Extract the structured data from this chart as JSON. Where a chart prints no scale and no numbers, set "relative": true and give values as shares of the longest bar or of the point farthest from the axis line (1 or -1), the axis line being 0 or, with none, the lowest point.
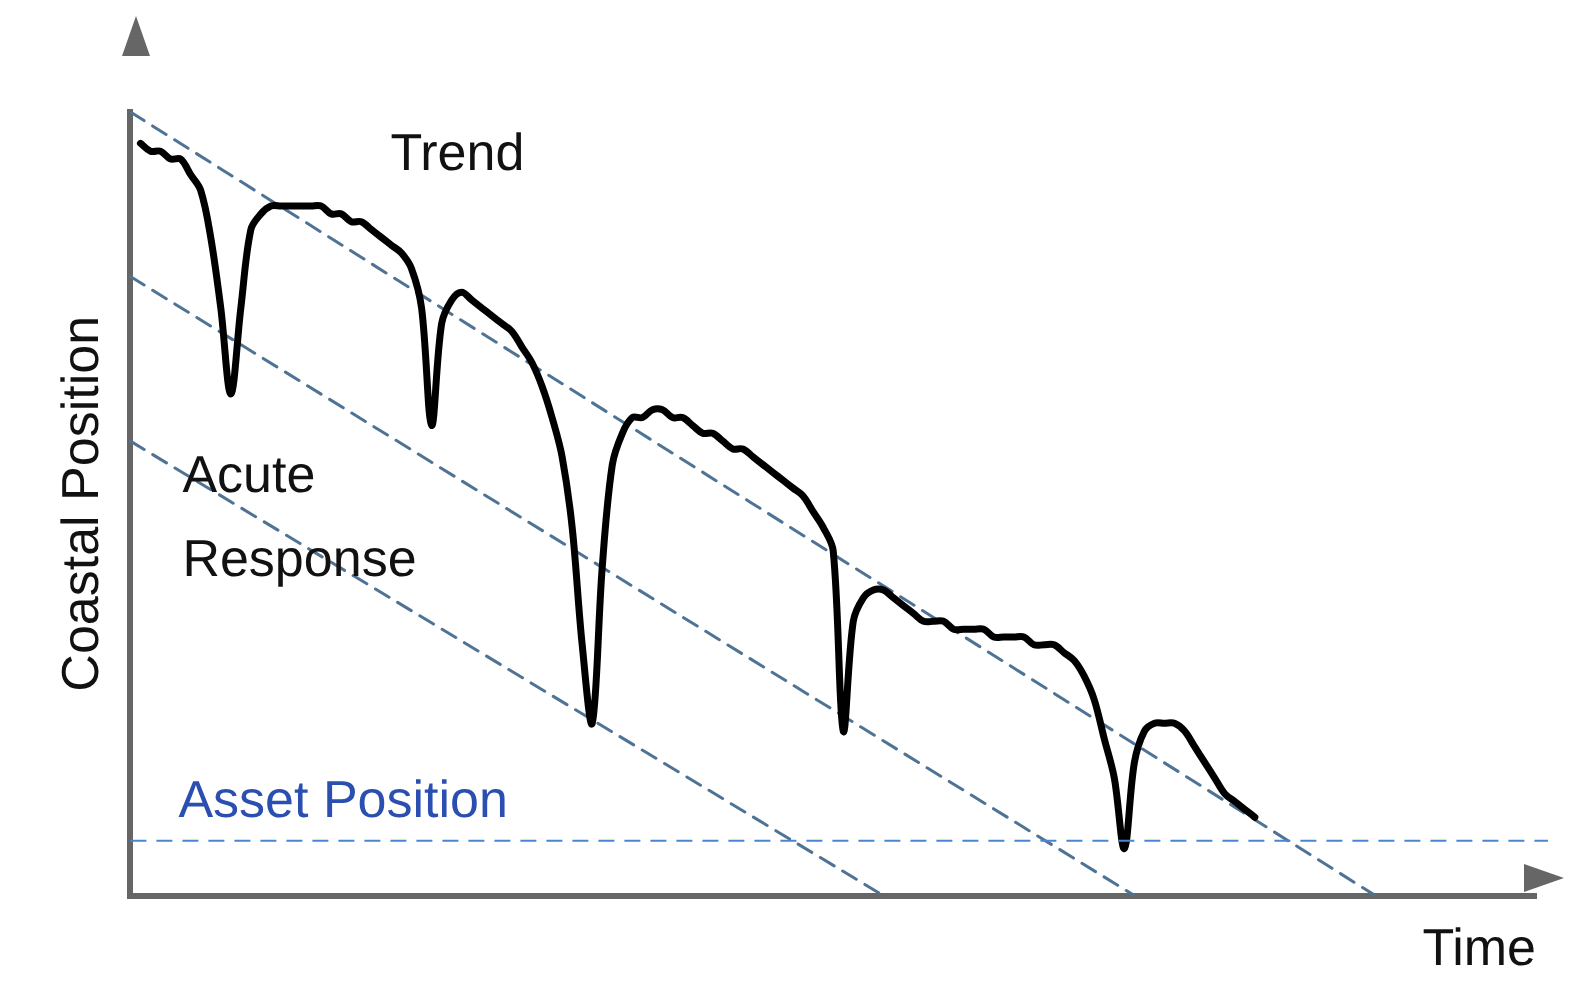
{
  "chart_data": {
    "type": "line",
    "relative": true,
    "xlabel": "Time",
    "ylabel": "Coastal Position",
    "tick_labels": false,
    "grid": false,
    "legend": false,
    "marker": "none",
    "categories": [
      null,
      null,
      null,
      null,
      null,
      null,
      null,
      null,
      null,
      null,
      null,
      null,
      null,
      null,
      null,
      null,
      null,
      null,
      null,
      null,
      null,
      null,
      null,
      null,
      null,
      null,
      null,
      null,
      null,
      null,
      null,
      null,
      null,
      null,
      null,
      null,
      null,
      null,
      null,
      null,
      null,
      null,
      null,
      null,
      null,
      null,
      null,
      null,
      null,
      null,
      null,
      null,
      null,
      null,
      null,
      null,
      null,
      null,
      null,
      null,
      null,
      null,
      null,
      null,
      null,
      null,
      null,
      null,
      null,
      null,
      null,
      null,
      null,
      null,
      null,
      null,
      null,
      null,
      null,
      null,
      null,
      null,
      null,
      null,
      null,
      null,
      null,
      null,
      null,
      null,
      null,
      null,
      null,
      null,
      null,
      null,
      null,
      null,
      null,
      null,
      null,
      null,
      null,
      null,
      null,
      null,
      null,
      null,
      null,
      null,
      null,
      null,
      null,
      null,
      null,
      null,
      null,
      null,
      null,
      null,
      null,
      null,
      null,
      null,
      null,
      null,
      null,
      null,
      null,
      null,
      null,
      null,
      null,
      null,
      null,
      null,
      null,
      null,
      null,
      null,
      null
    ],
    "series": [
      {
        "color": "#000000",
        "line_style": "solid",
        "values": [
          null,
          0.96,
          0.95,
          0.95,
          0.94,
          0.94,
          0.92,
          0.9,
          0.84,
          0.75,
          0.64,
          0.75,
          0.85,
          0.87,
          0.88,
          0.88,
          0.88,
          0.88,
          0.88,
          0.88,
          0.87,
          0.87,
          0.86,
          0.86,
          0.85,
          0.84,
          0.83,
          0.82,
          0.8,
          0.75,
          0.6,
          0.73,
          0.76,
          0.77,
          0.76,
          0.75,
          0.74,
          0.73,
          0.72,
          0.7,
          0.68,
          0.65,
          0.61,
          0.56,
          0.47,
          0.32,
          0.22,
          0.42,
          0.55,
          0.59,
          0.61,
          0.61,
          0.62,
          0.62,
          0.61,
          0.61,
          0.6,
          0.59,
          0.59,
          0.58,
          0.57,
          0.57,
          0.56,
          0.55,
          0.54,
          0.53,
          0.52,
          0.51,
          0.49,
          0.47,
          0.44,
          0.21,
          0.35,
          0.38,
          0.39,
          0.39,
          0.38,
          0.37,
          0.36,
          0.35,
          0.35,
          0.35,
          0.34,
          0.34,
          0.34,
          0.34,
          0.33,
          0.33,
          0.33,
          0.33,
          0.32,
          0.32,
          0.32,
          0.31,
          0.3,
          0.28,
          0.25,
          0.2,
          0.15,
          0.06,
          0.17,
          0.21,
          0.22,
          0.22,
          0.22,
          0.21,
          0.19,
          0.17,
          0.15,
          0.13,
          0.12,
          0.11,
          0.1,
          null,
          null,
          null,
          null,
          null,
          null,
          null,
          null,
          null,
          null,
          null,
          null,
          null,
          null,
          null,
          null,
          null,
          null,
          null,
          null,
          null,
          null,
          null,
          null,
          null,
          null,
          null,
          null
        ]
      },
      {
        "color": "#4f7394",
        "line_style": "dashed",
        "values": [
          1.0,
          null,
          null,
          null,
          null,
          null,
          null,
          null,
          null,
          null,
          null,
          null,
          null,
          null,
          null,
          null,
          null,
          null,
          null,
          null,
          null,
          null,
          null,
          null,
          null,
          null,
          null,
          null,
          null,
          null,
          null,
          null,
          null,
          null,
          null,
          null,
          null,
          null,
          null,
          null,
          null,
          null,
          null,
          null,
          null,
          null,
          null,
          null,
          null,
          null,
          null,
          null,
          null,
          null,
          null,
          null,
          null,
          null,
          null,
          null,
          null,
          null,
          null,
          null,
          null,
          null,
          null,
          null,
          null,
          null,
          null,
          null,
          null,
          null,
          null,
          null,
          null,
          null,
          null,
          null,
          null,
          null,
          null,
          null,
          null,
          null,
          null,
          null,
          null,
          null,
          null,
          null,
          null,
          null,
          null,
          null,
          null,
          null,
          null,
          null,
          null,
          null,
          null,
          null,
          null,
          null,
          null,
          null,
          null,
          null,
          null,
          null,
          null,
          null,
          null,
          null,
          null,
          null,
          null,
          null,
          null,
          null,
          null,
          null,
          0,
          null,
          null,
          null,
          null,
          null,
          null,
          null,
          null,
          null,
          null,
          null,
          null,
          null,
          null,
          null,
          null
        ]
      },
      {
        "color": "#4f7394",
        "line_style": "dashed",
        "values": [
          0.79,
          null,
          null,
          null,
          null,
          null,
          null,
          null,
          null,
          null,
          null,
          null,
          null,
          null,
          null,
          null,
          null,
          null,
          null,
          null,
          null,
          null,
          null,
          null,
          null,
          null,
          null,
          null,
          null,
          null,
          null,
          null,
          null,
          null,
          null,
          null,
          null,
          null,
          null,
          null,
          null,
          null,
          null,
          null,
          null,
          null,
          null,
          null,
          null,
          null,
          null,
          null,
          null,
          null,
          null,
          null,
          null,
          null,
          null,
          null,
          null,
          null,
          null,
          null,
          null,
          null,
          null,
          null,
          null,
          null,
          null,
          null,
          null,
          null,
          null,
          null,
          null,
          null,
          null,
          null,
          null,
          null,
          null,
          null,
          null,
          null,
          null,
          null,
          null,
          null,
          null,
          null,
          null,
          null,
          null,
          null,
          null,
          null,
          null,
          null,
          0,
          null,
          null,
          null,
          null,
          null,
          null,
          null,
          null,
          null,
          null,
          null,
          null,
          null,
          null,
          null,
          null,
          null,
          null,
          null,
          null,
          null,
          null,
          null,
          null,
          null,
          null,
          null,
          null,
          null,
          null,
          null,
          null,
          null,
          null,
          null,
          null,
          null,
          null,
          null,
          null
        ]
      },
      {
        "color": "#4f7394",
        "line_style": "dashed",
        "values": [
          0.58,
          null,
          null,
          null,
          null,
          null,
          null,
          null,
          null,
          null,
          null,
          null,
          null,
          null,
          null,
          null,
          null,
          null,
          null,
          null,
          null,
          null,
          null,
          null,
          null,
          null,
          null,
          null,
          null,
          null,
          null,
          null,
          null,
          null,
          null,
          null,
          null,
          null,
          null,
          null,
          null,
          null,
          null,
          null,
          null,
          null,
          null,
          null,
          null,
          null,
          null,
          null,
          null,
          null,
          null,
          null,
          null,
          null,
          null,
          null,
          null,
          null,
          null,
          null,
          null,
          null,
          null,
          null,
          null,
          null,
          null,
          null,
          null,
          null,
          null,
          0,
          null,
          null,
          null,
          null,
          null,
          null,
          null,
          null,
          null,
          null,
          null,
          null,
          null,
          null,
          null,
          null,
          null,
          null,
          null,
          null,
          null,
          null,
          null,
          null,
          null,
          null,
          null,
          null,
          null,
          null,
          null,
          null,
          null,
          null,
          null,
          null,
          null,
          null,
          null,
          null,
          null,
          null,
          null,
          null,
          null,
          null,
          null,
          null,
          null,
          null,
          null,
          null,
          null,
          null,
          null,
          null,
          null,
          null,
          null,
          null,
          null,
          null,
          null,
          null,
          null
        ]
      }
    ],
    "ref_lines": [
      {
        "axis": "y",
        "value": 0.07,
        "label": "Asset Position",
        "color": "#4a86d0",
        "line_style": "dashed"
      }
    ],
    "annotations": [
      "Trend",
      "Acute Response"
    ]
  }
}
